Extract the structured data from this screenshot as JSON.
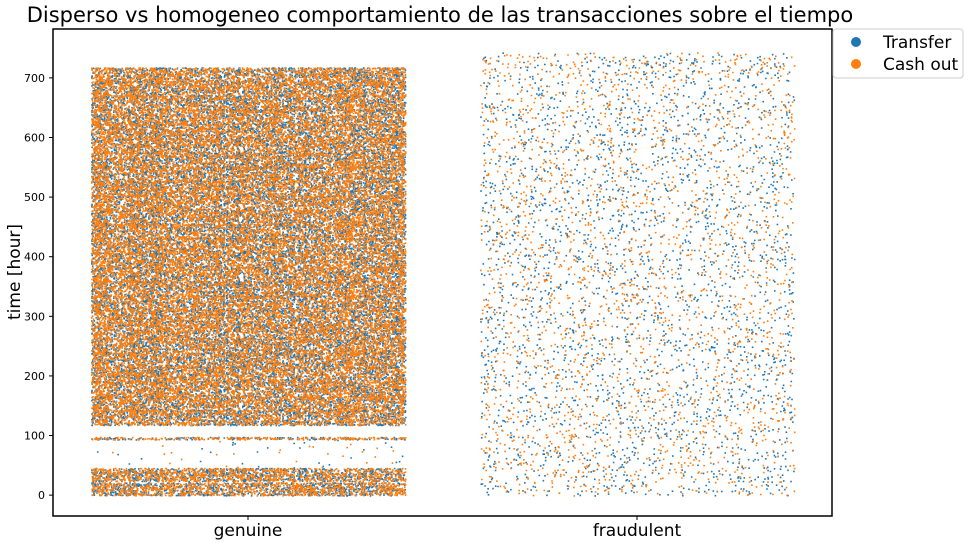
{
  "chart_data": {
    "type": "scatter",
    "title": "Disperso vs homogeneo comportamiento de las transacciones sobre el tiempo",
    "xlabel": "",
    "ylabel": "time [hour]",
    "categories": [
      "genuine",
      "fraudulent"
    ],
    "ylim": [
      -35,
      782
    ],
    "yticks": [
      0,
      100,
      200,
      300,
      400,
      500,
      600,
      700
    ],
    "grid": false,
    "legend_position": "upper-right-outside",
    "series": [
      {
        "name": "Transfer",
        "color": "#1f77b4"
      },
      {
        "name": "Cash out",
        "color": "#ff7f0e"
      }
    ],
    "genuine": {
      "y_range": [
        0,
        718
      ],
      "dense_hour_bands": [
        [
          0,
          22
        ],
        [
          24,
          46
        ],
        [
          94,
          98
        ],
        [
          118,
          143
        ],
        [
          142,
          167
        ],
        [
          166,
          191
        ],
        [
          190,
          215
        ],
        [
          214,
          239
        ],
        [
          238,
          263
        ],
        [
          262,
          287
        ],
        [
          286,
          311
        ],
        [
          310,
          335
        ],
        [
          334,
          359
        ],
        [
          358,
          383
        ],
        [
          382,
          407
        ],
        [
          406,
          431
        ],
        [
          430,
          455
        ],
        [
          454,
          479
        ],
        [
          478,
          503
        ],
        [
          502,
          527
        ],
        [
          526,
          551
        ],
        [
          550,
          575
        ],
        [
          574,
          599
        ],
        [
          598,
          623
        ],
        [
          622,
          647
        ],
        [
          646,
          671
        ],
        [
          670,
          695
        ],
        [
          694,
          718
        ]
      ],
      "sparse_hour_bands": [
        [
          46,
          94
        ]
      ]
    },
    "fraudulent": {
      "y_range": [
        0,
        743
      ],
      "distribution": "uniform"
    }
  }
}
